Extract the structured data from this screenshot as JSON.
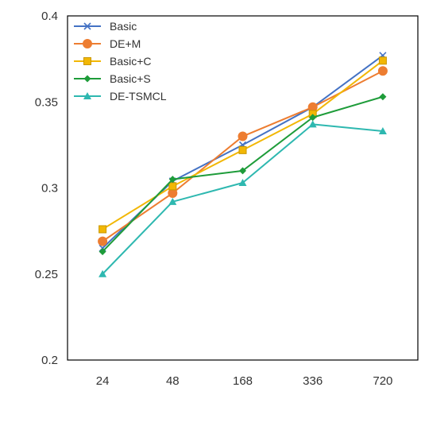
{
  "chart_data": {
    "type": "line",
    "categories": [
      "24",
      "48",
      "168",
      "336",
      "720"
    ],
    "ylim": [
      0.2,
      0.4
    ],
    "yticks": [
      0.2,
      0.25,
      0.3,
      0.35,
      0.4
    ],
    "ytick_labels": [
      "0.2",
      "0.25",
      "0.3",
      "0.35",
      "0.4"
    ],
    "grid": false,
    "legend_position": "top-left",
    "series": [
      {
        "name": "Basic",
        "color": "#4472C4",
        "marker": "x",
        "values": [
          0.265,
          0.304,
          0.325,
          0.347,
          0.377
        ]
      },
      {
        "name": "DE+M",
        "color": "#ED7D31",
        "marker": "circle",
        "values": [
          0.269,
          0.297,
          0.33,
          0.347,
          0.368
        ]
      },
      {
        "name": "Basic+C",
        "color": "#F2B705",
        "marker": "square",
        "values": [
          0.276,
          0.301,
          0.322,
          0.343,
          0.374
        ]
      },
      {
        "name": "Basic+S",
        "color": "#1E9C3A",
        "marker": "diamond",
        "values": [
          0.263,
          0.305,
          0.31,
          0.341,
          0.353
        ]
      },
      {
        "name": "DE-TSMCL",
        "color": "#2EB8B0",
        "marker": "triangle",
        "values": [
          0.25,
          0.292,
          0.303,
          0.337,
          0.333
        ]
      }
    ]
  }
}
